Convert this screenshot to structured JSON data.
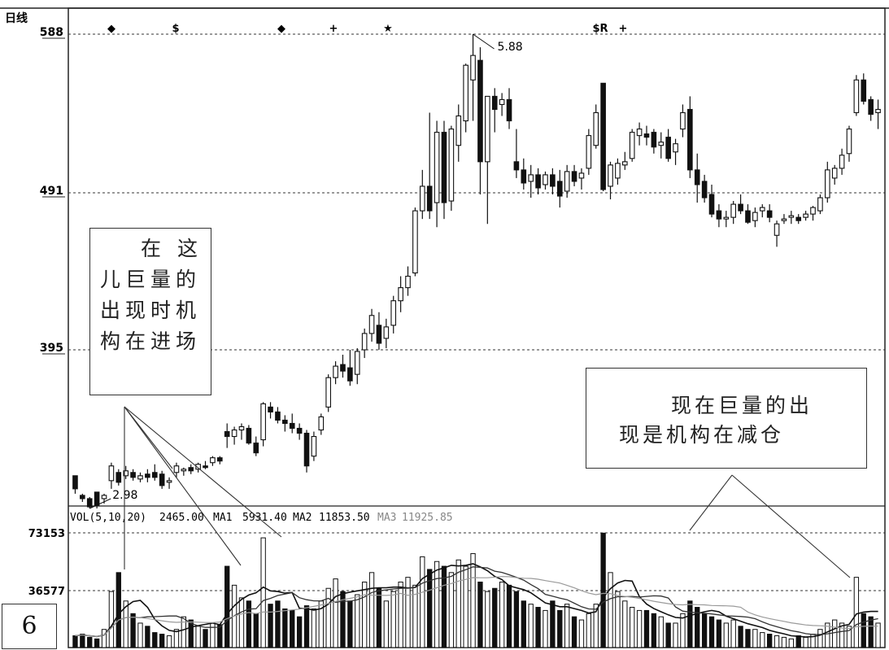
{
  "panel_number": "6",
  "annotations": {
    "left_lines": [
      "在 这",
      "儿巨量的",
      "出现时机",
      "构在进场"
    ],
    "right_lines": [
      "现在巨量的出",
      "现是机构在减仓"
    ]
  },
  "chart_data": {
    "type": "candlestick",
    "title": "日线",
    "price_axis": {
      "ticks": [
        "588",
        "491",
        "395"
      ],
      "levels": [
        5.88,
        4.91,
        3.95
      ],
      "range": [
        2.98,
        5.88
      ]
    },
    "high_label": "5.88",
    "low_label": "2.98",
    "event_markers": [
      "◆",
      "$",
      "◆",
      "+",
      "★",
      "$R",
      "+"
    ],
    "candles": [
      [
        3.18,
        3.18,
        3.07,
        3.1
      ],
      [
        3.06,
        3.07,
        3.02,
        3.04
      ],
      [
        3.04,
        3.05,
        2.98,
        2.99
      ],
      [
        3.08,
        3.08,
        2.98,
        3.0
      ],
      [
        3.04,
        3.07,
        3.01,
        3.06
      ],
      [
        3.15,
        3.26,
        3.1,
        3.24
      ],
      [
        3.2,
        3.22,
        3.12,
        3.14
      ],
      [
        3.18,
        3.24,
        3.16,
        3.21
      ],
      [
        3.2,
        3.22,
        3.15,
        3.17
      ],
      [
        3.16,
        3.2,
        3.14,
        3.18
      ],
      [
        3.19,
        3.22,
        3.14,
        3.17
      ],
      [
        3.2,
        3.25,
        3.15,
        3.17
      ],
      [
        3.19,
        3.21,
        3.1,
        3.12
      ],
      [
        3.14,
        3.17,
        3.1,
        3.15
      ],
      [
        3.2,
        3.26,
        3.17,
        3.24
      ],
      [
        3.21,
        3.23,
        3.18,
        3.22
      ],
      [
        3.23,
        3.25,
        3.19,
        3.21
      ],
      [
        3.22,
        3.26,
        3.2,
        3.25
      ],
      [
        3.24,
        3.27,
        3.22,
        3.23
      ],
      [
        3.26,
        3.3,
        3.24,
        3.29
      ],
      [
        3.29,
        3.3,
        3.25,
        3.27
      ],
      [
        3.45,
        3.5,
        3.35,
        3.42
      ],
      [
        3.42,
        3.48,
        3.37,
        3.46
      ],
      [
        3.46,
        3.5,
        3.4,
        3.48
      ],
      [
        3.47,
        3.49,
        3.37,
        3.38
      ],
      [
        3.38,
        3.42,
        3.3,
        3.32
      ],
      [
        3.4,
        3.63,
        3.36,
        3.62
      ],
      [
        3.6,
        3.63,
        3.53,
        3.57
      ],
      [
        3.57,
        3.6,
        3.5,
        3.52
      ],
      [
        3.52,
        3.55,
        3.45,
        3.5
      ],
      [
        3.5,
        3.56,
        3.44,
        3.47
      ],
      [
        3.47,
        3.5,
        3.4,
        3.44
      ],
      [
        3.44,
        3.46,
        3.2,
        3.24
      ],
      [
        3.3,
        3.45,
        3.27,
        3.42
      ],
      [
        3.46,
        3.56,
        3.43,
        3.54
      ],
      [
        3.6,
        3.8,
        3.57,
        3.78
      ],
      [
        3.78,
        3.88,
        3.74,
        3.85
      ],
      [
        3.86,
        3.92,
        3.78,
        3.82
      ],
      [
        3.84,
        3.95,
        3.73,
        3.76
      ],
      [
        3.8,
        3.96,
        3.74,
        3.94
      ],
      [
        3.95,
        4.08,
        3.9,
        4.05
      ],
      [
        4.05,
        4.2,
        4.0,
        4.16
      ],
      [
        4.1,
        4.18,
        3.95,
        3.99
      ],
      [
        4.02,
        4.14,
        3.96,
        4.09
      ],
      [
        4.1,
        4.28,
        4.05,
        4.25
      ],
      [
        4.25,
        4.4,
        4.18,
        4.33
      ],
      [
        4.33,
        4.46,
        4.28,
        4.4
      ],
      [
        4.42,
        4.82,
        4.4,
        4.8
      ],
      [
        4.8,
        5.05,
        4.75,
        4.95
      ],
      [
        4.95,
        5.4,
        4.75,
        4.8
      ],
      [
        4.85,
        5.35,
        4.7,
        5.28
      ],
      [
        5.28,
        5.35,
        4.75,
        4.85
      ],
      [
        4.86,
        5.32,
        4.8,
        5.3
      ],
      [
        5.2,
        5.45,
        5.1,
        5.38
      ],
      [
        5.35,
        5.7,
        5.28,
        5.69
      ],
      [
        5.6,
        5.88,
        5.35,
        5.75
      ],
      [
        5.72,
        5.8,
        4.9,
        5.1
      ],
      [
        5.1,
        5.5,
        4.72,
        5.5
      ],
      [
        5.5,
        5.55,
        5.28,
        5.42
      ],
      [
        5.45,
        5.52,
        5.38,
        5.48
      ],
      [
        5.48,
        5.55,
        5.3,
        5.35
      ],
      [
        5.1,
        5.3,
        5.0,
        5.05
      ],
      [
        5.05,
        5.12,
        4.93,
        4.97
      ],
      [
        4.98,
        5.08,
        4.88,
        5.02
      ],
      [
        5.02,
        5.06,
        4.9,
        4.94
      ],
      [
        4.96,
        5.04,
        4.93,
        5.02
      ],
      [
        5.02,
        5.06,
        4.9,
        4.95
      ],
      [
        4.98,
        5.05,
        4.82,
        4.89
      ],
      [
        4.92,
        5.08,
        4.88,
        5.04
      ],
      [
        5.04,
        5.08,
        4.95,
        4.98
      ],
      [
        5.0,
        5.06,
        4.93,
        5.03
      ],
      [
        5.06,
        5.3,
        5.02,
        5.26
      ],
      [
        5.2,
        5.45,
        5.18,
        5.4
      ],
      [
        5.58,
        5.58,
        4.92,
        4.93
      ],
      [
        4.95,
        5.1,
        4.87,
        5.08
      ],
      [
        5.0,
        5.12,
        4.96,
        5.09
      ],
      [
        5.08,
        5.16,
        5.05,
        5.1
      ],
      [
        5.12,
        5.3,
        5.1,
        5.28
      ],
      [
        5.26,
        5.34,
        5.2,
        5.3
      ],
      [
        5.27,
        5.32,
        5.2,
        5.25
      ],
      [
        5.28,
        5.3,
        5.15,
        5.19
      ],
      [
        5.2,
        5.28,
        5.12,
        5.22
      ],
      [
        5.25,
        5.3,
        5.1,
        5.12
      ],
      [
        5.16,
        5.24,
        5.08,
        5.21
      ],
      [
        5.3,
        5.45,
        5.25,
        5.4
      ],
      [
        5.42,
        5.5,
        5.0,
        5.05
      ],
      [
        5.05,
        5.15,
        4.85,
        4.96
      ],
      [
        4.98,
        5.02,
        4.85,
        4.88
      ],
      [
        4.9,
        4.96,
        4.76,
        4.78
      ],
      [
        4.8,
        4.84,
        4.7,
        4.75
      ],
      [
        4.75,
        4.8,
        4.7,
        4.76
      ],
      [
        4.76,
        4.86,
        4.72,
        4.84
      ],
      [
        4.84,
        4.9,
        4.78,
        4.8
      ],
      [
        4.8,
        4.84,
        4.72,
        4.73
      ],
      [
        4.74,
        4.82,
        4.7,
        4.79
      ],
      [
        4.8,
        4.84,
        4.76,
        4.82
      ],
      [
        4.8,
        4.84,
        4.73,
        4.76
      ],
      [
        4.65,
        4.74,
        4.58,
        4.72
      ],
      [
        4.74,
        4.78,
        4.72,
        4.75
      ],
      [
        4.76,
        4.8,
        4.72,
        4.77
      ],
      [
        4.76,
        4.78,
        4.72,
        4.74
      ],
      [
        4.76,
        4.8,
        4.74,
        4.78
      ],
      [
        4.78,
        4.83,
        4.74,
        4.82
      ],
      [
        4.8,
        4.9,
        4.78,
        4.88
      ],
      [
        4.88,
        5.1,
        4.85,
        5.05
      ],
      [
        5.0,
        5.08,
        4.96,
        5.06
      ],
      [
        5.06,
        5.18,
        5.02,
        5.14
      ],
      [
        5.15,
        5.32,
        5.1,
        5.3
      ],
      [
        5.4,
        5.63,
        5.38,
        5.6
      ],
      [
        5.6,
        5.64,
        5.45,
        5.47
      ],
      [
        5.48,
        5.5,
        5.35,
        5.39
      ],
      [
        5.4,
        5.48,
        5.3,
        5.42
      ]
    ],
    "volume_header": {
      "label": "VOL(5,10,20)",
      "value": "2465.00",
      "ma1_label": "MA1",
      "ma1_value": "5931.40",
      "ma2_label": "MA2",
      "ma2_value": "11853.50",
      "ma3_label": "MA3",
      "ma3_value": "11925.85"
    },
    "volume_axis": {
      "ticks": [
        "73153",
        "36577"
      ],
      "levels": [
        73153,
        36577
      ]
    },
    "volumes": [
      8000,
      9000,
      7000,
      6000,
      12000,
      36000,
      48000,
      30000,
      22000,
      16000,
      14000,
      10000,
      9000,
      8000,
      12000,
      20000,
      18000,
      14000,
      12000,
      16000,
      15000,
      52000,
      40000,
      32000,
      30000,
      22000,
      70000,
      28000,
      30000,
      25000,
      24000,
      20000,
      27000,
      25000,
      30000,
      38000,
      44000,
      36000,
      30000,
      34000,
      42000,
      48000,
      38000,
      30000,
      36000,
      42000,
      45000,
      40000,
      58000,
      50000,
      55000,
      52000,
      48000,
      56000,
      52000,
      60000,
      42000,
      36000,
      38000,
      42000,
      40000,
      36000,
      30000,
      28000,
      26000,
      24000,
      30000,
      24000,
      28000,
      20000,
      18000,
      22000,
      28000,
      73000,
      48000,
      36000,
      30000,
      26000,
      24000,
      24000,
      22000,
      20000,
      16000,
      16000,
      22000,
      30000,
      26000,
      22000,
      20000,
      18000,
      16000,
      18000,
      14000,
      12000,
      12000,
      10000,
      9000,
      8000,
      7000,
      6000,
      8000,
      7000,
      9000,
      12000,
      16000,
      18000,
      16000,
      14000,
      45000,
      22000,
      20000,
      16000
    ]
  }
}
